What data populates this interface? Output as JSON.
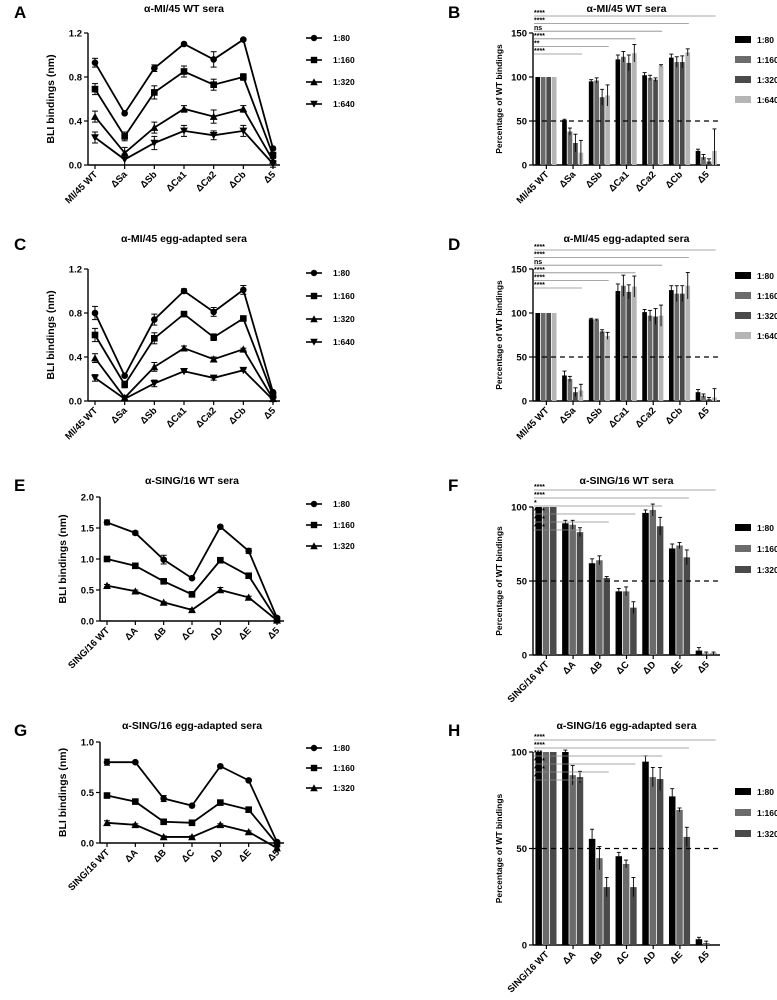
{
  "chart_data": [
    {
      "letter": "A",
      "type": "line",
      "title": "α-MI/45 WT sera",
      "ylabel": "BLI bindings (nm)",
      "ylim": [
        0,
        1.2
      ],
      "yticks": [
        0.0,
        0.4,
        0.8,
        1.2
      ],
      "tick_labels": [
        "0.0",
        "0.4",
        "0.8",
        "1.2"
      ],
      "categories": [
        "MI/45 WT",
        "ΔSa",
        "ΔSb",
        "ΔCa1",
        "ΔCa2",
        "ΔCb",
        "Δ5"
      ],
      "series": [
        {
          "name": "1:80",
          "marker": "circle",
          "values": [
            0.93,
            0.47,
            0.88,
            1.1,
            0.96,
            1.14,
            0.15
          ],
          "err": [
            0.04,
            0.01,
            0.03,
            0.01,
            0.07,
            0.01,
            0.01
          ]
        },
        {
          "name": "1:160",
          "marker": "square",
          "values": [
            0.69,
            0.26,
            0.66,
            0.85,
            0.73,
            0.8,
            0.09
          ],
          "err": [
            0.05,
            0.04,
            0.06,
            0.05,
            0.05,
            0.03,
            0.02
          ]
        },
        {
          "name": "1:320",
          "marker": "triangle-up",
          "values": [
            0.44,
            0.11,
            0.34,
            0.51,
            0.44,
            0.51,
            0.04
          ],
          "err": [
            0.05,
            0.05,
            0.05,
            0.03,
            0.06,
            0.03,
            0.02
          ]
        },
        {
          "name": "1:640",
          "marker": "triangle-down",
          "values": [
            0.25,
            0.05,
            0.2,
            0.31,
            0.27,
            0.31,
            0.01
          ],
          "err": [
            0.05,
            0.05,
            0.06,
            0.05,
            0.04,
            0.05,
            0.03
          ]
        }
      ]
    },
    {
      "letter": "B",
      "type": "bar",
      "title": "α-MI/45 WT sera",
      "ylabel": "Percentage of WT bindings",
      "ylim": [
        0,
        150
      ],
      "yticks": [
        0,
        50,
        100,
        150
      ],
      "tick_labels": [
        "0",
        "50",
        "100",
        "150"
      ],
      "dashed_at": 50,
      "categories": [
        "MI/45 WT",
        "ΔSa",
        "ΔSb",
        "ΔCa1",
        "ΔCa2",
        "ΔCb",
        "Δ5"
      ],
      "series": [
        {
          "name": "1:80",
          "values": [
            100,
            51,
            95,
            120,
            102,
            122,
            16
          ],
          "err": [
            0,
            1,
            2,
            5,
            3,
            4,
            2
          ]
        },
        {
          "name": "1:160",
          "values": [
            100,
            38,
            96,
            123,
            99,
            117,
            9
          ],
          "err": [
            0,
            4,
            3,
            6,
            3,
            6,
            3
          ]
        },
        {
          "name": "1:320",
          "values": [
            100,
            25,
            77,
            116,
            97,
            117,
            4
          ],
          "err": [
            0,
            10,
            9,
            9,
            2,
            7,
            3
          ]
        },
        {
          "name": "1:640",
          "values": [
            100,
            14,
            79,
            127,
            113,
            128,
            16
          ],
          "err": [
            0,
            14,
            12,
            10,
            1,
            4,
            25
          ]
        }
      ],
      "significance": [
        {
          "label": "****",
          "to": 6
        },
        {
          "label": "****",
          "to": 5
        },
        {
          "label": "ns",
          "to": 4
        },
        {
          "label": "****",
          "to": 3
        },
        {
          "label": "**",
          "to": 2
        },
        {
          "label": "****",
          "to": 1
        }
      ]
    },
    {
      "letter": "C",
      "type": "line",
      "title": "α-MI/45 egg-adapted sera",
      "ylabel": "BLI bindings (nm)",
      "ylim": [
        0,
        1.2
      ],
      "yticks": [
        0.0,
        0.4,
        0.8,
        1.2
      ],
      "tick_labels": [
        "0.0",
        "0.4",
        "0.8",
        "1.2"
      ],
      "categories": [
        "MI/45 WT",
        "ΔSa",
        "ΔSb",
        "ΔCa1",
        "ΔCa2",
        "ΔCb",
        "Δ5"
      ],
      "series": [
        {
          "name": "1:80",
          "marker": "circle",
          "values": [
            0.8,
            0.23,
            0.74,
            1.0,
            0.81,
            1.01,
            0.08
          ],
          "err": [
            0.06,
            0.01,
            0.05,
            0.02,
            0.04,
            0.04,
            0.01
          ]
        },
        {
          "name": "1:160",
          "marker": "square",
          "values": [
            0.6,
            0.15,
            0.57,
            0.79,
            0.58,
            0.75,
            0.05
          ],
          "err": [
            0.06,
            0.03,
            0.05,
            0.01,
            0.03,
            0.01,
            0.01
          ]
        },
        {
          "name": "1:320",
          "marker": "triangle-up",
          "values": [
            0.39,
            0.03,
            0.31,
            0.48,
            0.38,
            0.47,
            0.02
          ],
          "err": [
            0.04,
            0.02,
            0.04,
            0.02,
            0.02,
            0.01,
            0.02
          ]
        },
        {
          "name": "1:640",
          "marker": "triangle-down",
          "values": [
            0.21,
            0.02,
            0.16,
            0.27,
            0.21,
            0.28,
            0.01
          ],
          "err": [
            0.03,
            0.01,
            0.03,
            0.01,
            0.02,
            0.01,
            0.01
          ]
        }
      ]
    },
    {
      "letter": "D",
      "type": "bar",
      "title": "α-MI/45 egg-adapted sera",
      "ylabel": "Percentage of WT bindings",
      "ylim": [
        0,
        150
      ],
      "yticks": [
        0,
        50,
        100,
        150
      ],
      "tick_labels": [
        "0",
        "50",
        "100",
        "150"
      ],
      "dashed_at": 50,
      "categories": [
        "MI/45 WT",
        "ΔSa",
        "ΔSb",
        "ΔCa1",
        "ΔCa2",
        "ΔCb",
        "Δ5"
      ],
      "series": [
        {
          "name": "1:80",
          "values": [
            100,
            29,
            93,
            125,
            101,
            126,
            10
          ],
          "err": [
            0,
            5,
            1,
            8,
            3,
            5,
            3
          ]
        },
        {
          "name": "1:160",
          "values": [
            100,
            25,
            92,
            131,
            97,
            122,
            6
          ],
          "err": [
            0,
            3,
            1,
            12,
            6,
            9,
            2
          ]
        },
        {
          "name": "1:320",
          "values": [
            100,
            10,
            79,
            124,
            96,
            122,
            2
          ],
          "err": [
            0,
            5,
            2,
            8,
            9,
            9,
            2
          ]
        },
        {
          "name": "1:640",
          "values": [
            100,
            12,
            74,
            130,
            97,
            131,
            4
          ],
          "err": [
            0,
            7,
            4,
            12,
            12,
            15,
            10
          ]
        }
      ],
      "significance": [
        {
          "label": "****",
          "to": 6
        },
        {
          "label": "****",
          "to": 5
        },
        {
          "label": "ns",
          "to": 4
        },
        {
          "label": "****",
          "to": 3
        },
        {
          "label": "****",
          "to": 2
        },
        {
          "label": "****",
          "to": 1
        }
      ]
    },
    {
      "letter": "E",
      "type": "line",
      "title": "α-SING/16 WT sera",
      "ylabel": "BLI bindings (nm)",
      "ylim": [
        0,
        2.0
      ],
      "yticks": [
        0.0,
        0.5,
        1.0,
        1.5,
        2.0
      ],
      "tick_labels": [
        "0.0",
        "0.5",
        "1.0",
        "1.5",
        "2.0"
      ],
      "categories": [
        "SING/16 WT",
        "ΔA",
        "ΔB",
        "ΔC",
        "ΔD",
        "ΔE",
        "Δ5"
      ],
      "series": [
        {
          "name": "1:80",
          "marker": "circle",
          "values": [
            1.59,
            1.42,
            0.99,
            0.69,
            1.52,
            1.13,
            0.05
          ],
          "err": [
            0.04,
            0.03,
            0.07,
            0.02,
            0.02,
            0.04,
            0.02
          ]
        },
        {
          "name": "1:160",
          "marker": "square",
          "values": [
            1.0,
            0.89,
            0.64,
            0.43,
            0.98,
            0.73,
            0.02
          ],
          "err": [
            0.02,
            0.02,
            0.03,
            0.02,
            0.04,
            0.02,
            0.01
          ]
        },
        {
          "name": "1:320",
          "marker": "triangle-up",
          "values": [
            0.57,
            0.48,
            0.3,
            0.18,
            0.5,
            0.38,
            0.01
          ],
          "err": [
            0.02,
            0.02,
            0.01,
            0.02,
            0.04,
            0.02,
            0.01
          ]
        }
      ]
    },
    {
      "letter": "F",
      "type": "bar",
      "title": "α-SING/16 WT sera",
      "ylabel": "Percentage of WT bindings",
      "ylim": [
        0,
        100
      ],
      "yticks": [
        0,
        50,
        100
      ],
      "tick_labels": [
        "0",
        "50",
        "100"
      ],
      "dashed_at": 50,
      "categories": [
        "SING/16 WT",
        "ΔA",
        "ΔB",
        "ΔC",
        "ΔD",
        "ΔE",
        "Δ5"
      ],
      "series": [
        {
          "name": "1:80",
          "values": [
            100,
            89,
            62,
            43,
            96,
            72,
            3
          ],
          "err": [
            0,
            2,
            3,
            2,
            2,
            3,
            2
          ]
        },
        {
          "name": "1:160",
          "values": [
            100,
            88,
            64,
            43,
            98,
            74,
            1
          ],
          "err": [
            0,
            3,
            3,
            3,
            4,
            2,
            1
          ]
        },
        {
          "name": "1:320",
          "values": [
            100,
            83,
            52,
            32,
            87,
            66,
            1
          ],
          "err": [
            0,
            3,
            1,
            4,
            6,
            5,
            1
          ]
        }
      ],
      "significance": [
        {
          "label": "****",
          "to": 6
        },
        {
          "label": "****",
          "to": 5
        },
        {
          "label": "*",
          "to": 4
        },
        {
          "label": "****",
          "to": 3
        },
        {
          "label": "****",
          "to": 2
        },
        {
          "label": "****",
          "to": 1
        }
      ]
    },
    {
      "letter": "G",
      "type": "line",
      "title": "α-SING/16 egg-adapted sera",
      "ylabel": "BLI bindings (nm)",
      "ylim": [
        0,
        1.0
      ],
      "yticks": [
        0.0,
        0.5,
        1.0
      ],
      "tick_labels": [
        "0.0",
        "0.5",
        "1.0"
      ],
      "categories": [
        "SING/16 WT",
        "ΔA",
        "ΔB",
        "ΔC",
        "ΔD",
        "ΔE",
        "Δ5"
      ],
      "series": [
        {
          "name": "1:80",
          "marker": "circle",
          "values": [
            0.8,
            0.8,
            0.44,
            0.37,
            0.76,
            0.62,
            0.01
          ],
          "err": [
            0.03,
            0.01,
            0.03,
            0.01,
            0.01,
            0.01,
            0.01
          ]
        },
        {
          "name": "1:160",
          "marker": "square",
          "values": [
            0.47,
            0.41,
            0.21,
            0.2,
            0.4,
            0.33,
            -0.01
          ],
          "err": [
            0.01,
            0.01,
            0.01,
            0.01,
            0.01,
            0.01,
            0.01
          ]
        },
        {
          "name": "1:320",
          "marker": "triangle-up",
          "values": [
            0.2,
            0.18,
            0.06,
            0.06,
            0.18,
            0.11,
            -0.05
          ],
          "err": [
            0.02,
            0.01,
            0.01,
            0.01,
            0.01,
            0.01,
            0.01
          ]
        }
      ]
    },
    {
      "letter": "H",
      "type": "bar",
      "title": "α-SING/16 egg-adapted sera",
      "ylabel": "Percentage of WT bindings",
      "ylim": [
        0,
        100
      ],
      "yticks": [
        0,
        50,
        100
      ],
      "tick_labels": [
        "0",
        "50",
        "100"
      ],
      "dashed_at": 50,
      "categories": [
        "SING/16 WT",
        "ΔA",
        "ΔB",
        "ΔC",
        "ΔD",
        "ΔE",
        "Δ5"
      ],
      "series": [
        {
          "name": "1:80",
          "values": [
            100,
            100,
            55,
            46,
            95,
            77,
            3
          ],
          "err": [
            0,
            1,
            5,
            2,
            3,
            4,
            1
          ]
        },
        {
          "name": "1:160",
          "values": [
            100,
            88,
            45,
            42,
            87,
            70,
            1
          ],
          "err": [
            0,
            5,
            6,
            2,
            5,
            1,
            1
          ]
        },
        {
          "name": "1:320",
          "values": [
            100,
            87,
            30,
            30,
            86,
            56,
            0
          ],
          "err": [
            0,
            3,
            5,
            5,
            6,
            5,
            0
          ]
        }
      ],
      "significance": [
        {
          "label": "****",
          "to": 6
        },
        {
          "label": "****",
          "to": 5
        },
        {
          "label": "***",
          "to": 4
        },
        {
          "label": "****",
          "to": 3
        },
        {
          "label": "****",
          "to": 2
        },
        {
          "label": "*",
          "to": 1
        }
      ]
    }
  ],
  "colors": {
    "axis": "#000000",
    "bar_series": [
      "#000000",
      "#6b6b6b",
      "#4a4a4a",
      "#b5b5b5"
    ],
    "sig_line": "#8a8a8a"
  }
}
